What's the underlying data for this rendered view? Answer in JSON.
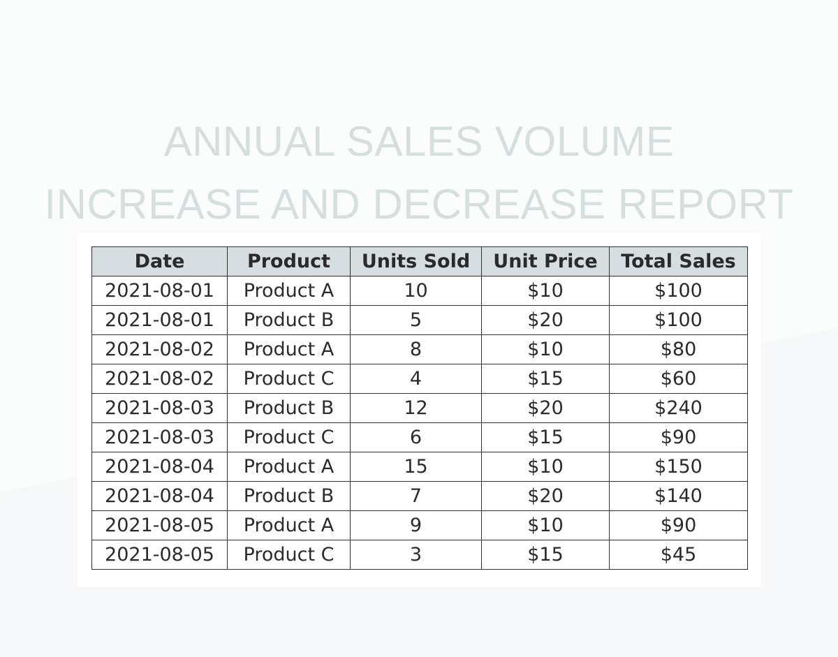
{
  "title": {
    "line1": "ANNUAL SALES VOLUME",
    "line2": "INCREASE AND DECREASE REPORT"
  },
  "table": {
    "headers": [
      "Date",
      "Product",
      "Units Sold",
      "Unit Price",
      "Total Sales"
    ],
    "rows": [
      [
        "2021-08-01",
        "Product A",
        "10",
        "$10",
        "$100"
      ],
      [
        "2021-08-01",
        "Product B",
        "5",
        "$20",
        "$100"
      ],
      [
        "2021-08-02",
        "Product A",
        "8",
        "$10",
        "$80"
      ],
      [
        "2021-08-02",
        "Product C",
        "4",
        "$15",
        "$60"
      ],
      [
        "2021-08-03",
        "Product B",
        "12",
        "$20",
        "$240"
      ],
      [
        "2021-08-03",
        "Product C",
        "6",
        "$15",
        "$90"
      ],
      [
        "2021-08-04",
        "Product A",
        "15",
        "$10",
        "$150"
      ],
      [
        "2021-08-04",
        "Product B",
        "7",
        "$20",
        "$140"
      ],
      [
        "2021-08-05",
        "Product A",
        "9",
        "$10",
        "$90"
      ],
      [
        "2021-08-05",
        "Product C",
        "3",
        "$15",
        "$45"
      ]
    ]
  },
  "colors": {
    "title": "#d5dfdf",
    "header_bg": "#d5dde0",
    "border": "#2f2f2f",
    "page_bg": "#f6f8f9"
  }
}
